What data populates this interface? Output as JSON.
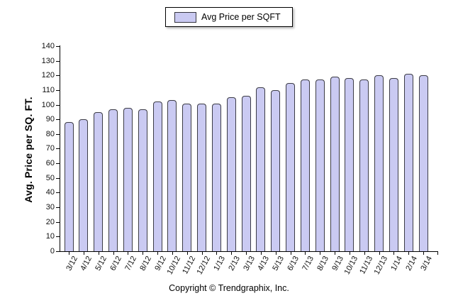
{
  "legend": {
    "label": "Avg Price per SQFT",
    "swatch_color": "#cacaf2"
  },
  "footer": {
    "text": "Copyright © Trendgraphix, Inc."
  },
  "chart_data": {
    "type": "bar",
    "title": "",
    "xlabel": "",
    "ylabel": "Avg. Price per SQ. FT.",
    "ylim": [
      0,
      140
    ],
    "ytick_step": 10,
    "grid": false,
    "legend_position": "top-center",
    "series_name": "Avg Price per SQFT",
    "categories": [
      "3/12",
      "4/12",
      "5/12",
      "6/12",
      "7/12",
      "8/12",
      "9/12",
      "10/12",
      "11/12",
      "12/12",
      "1/13",
      "2/13",
      "3/13",
      "4/13",
      "5/13",
      "6/13",
      "7/13",
      "8/13",
      "9/13",
      "10/13",
      "11/13",
      "12/13",
      "1/14",
      "2/14",
      "3/14"
    ],
    "values": [
      88,
      90,
      95,
      97,
      98,
      97,
      102,
      103,
      101,
      101,
      101,
      105,
      106,
      112,
      110,
      115,
      117,
      117,
      119,
      118,
      117,
      120,
      118,
      121,
      120
    ],
    "bar_fill": "#cacaf2",
    "bar_border": "#3c3c46"
  }
}
